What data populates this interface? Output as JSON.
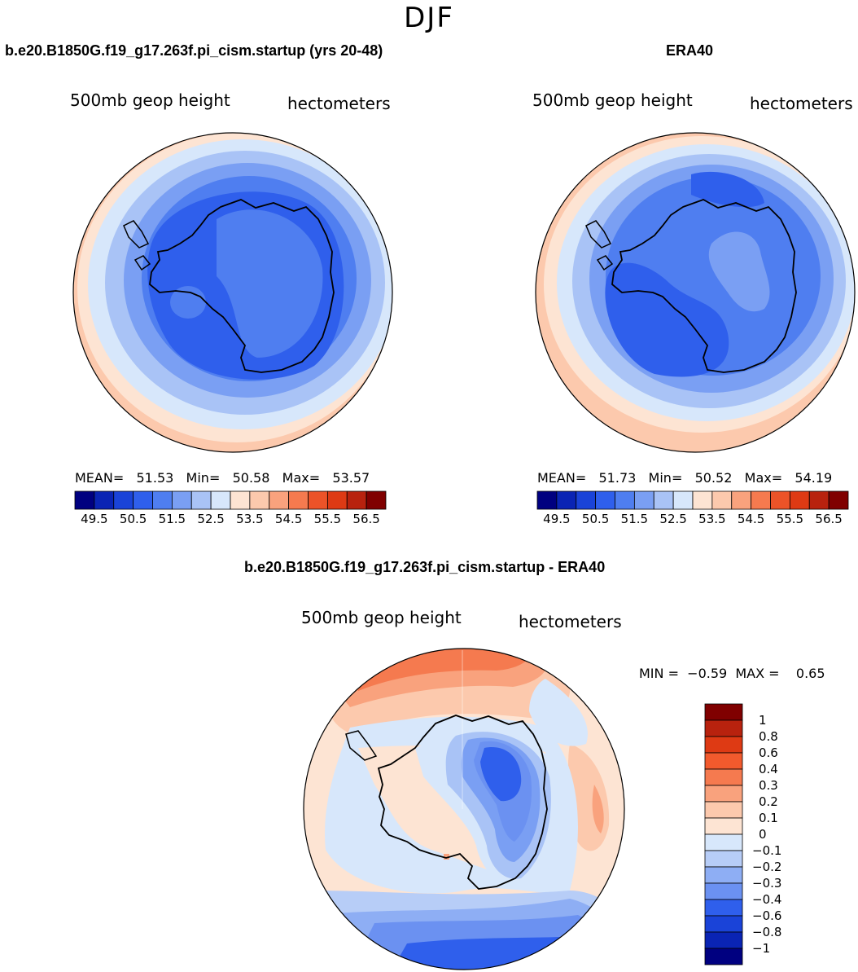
{
  "season": "DJF",
  "panels": [
    {
      "title": "b.e20.B1850G.f19_g17.263f.pi_cism.startup (yrs 20-48)",
      "variable": "500mb geop height",
      "units": "hectometers",
      "stats": "MEAN=   51.53   Min=   50.58   Max=   53.57",
      "colorbar_labels": [
        "49.5",
        "50.5",
        "51.5",
        "52.5",
        "53.5",
        "54.5",
        "55.5",
        "56.5"
      ]
    },
    {
      "title": "ERA40",
      "variable": "500mb geop height",
      "units": "hectometers",
      "stats": "MEAN=   51.73   Min=   50.52   Max=   54.19",
      "colorbar_labels": [
        "49.5",
        "50.5",
        "51.5",
        "52.5",
        "53.5",
        "54.5",
        "55.5",
        "56.5"
      ]
    }
  ],
  "diff": {
    "title": "b.e20.B1850G.f19_g17.263f.pi_cism.startup - ERA40",
    "variable": "500mb geop height",
    "units": "hectometers",
    "stats": "MIN =  −0.59  MAX =    0.65",
    "colorbar_labels": [
      "1",
      "0.8",
      "0.6",
      "0.4",
      "0.3",
      "0.2",
      "0.1",
      "0",
      "−0.1",
      "−0.2",
      "−0.3",
      "−0.4",
      "−0.6",
      "−0.8",
      "−1"
    ]
  },
  "colors": {
    "abs_scale": [
      "#000080",
      "#0a24b4",
      "#1a43d8",
      "#2f5fec",
      "#4f7ef0",
      "#7a9ff3",
      "#a9c3f6",
      "#d7e7fb",
      "#fde4d3",
      "#fcc9ad",
      "#f9a27d",
      "#f57a4f",
      "#ec5328",
      "#de3a14",
      "#b8220e",
      "#800000"
    ],
    "diff_scale": [
      "#800000",
      "#b8220e",
      "#de3a14",
      "#f25a2d",
      "#f57a4f",
      "#f9a27d",
      "#fcc9ad",
      "#fde4d3",
      "#d7e7fb",
      "#b7cdf7",
      "#8eaef4",
      "#6b91f1",
      "#2f5fec",
      "#1a43d8",
      "#0a24b4",
      "#000080"
    ]
  }
}
